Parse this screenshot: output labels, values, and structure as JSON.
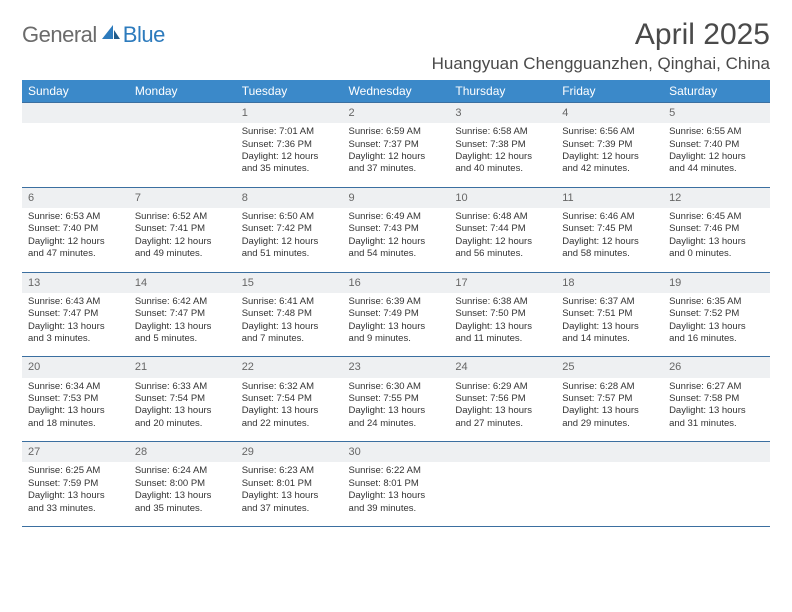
{
  "brand": {
    "general": "General",
    "blue": "Blue"
  },
  "title": "April 2025",
  "location": "Huangyuan Chengguanzhen, Qinghai, China",
  "colors": {
    "header_bg": "#3b89c9",
    "header_fg": "#ffffff",
    "daynum_bg": "#eef0f2",
    "rule": "#3b6fa0",
    "brand_gray": "#6b6b6b",
    "brand_blue": "#2d7bbd"
  },
  "weekdays": [
    "Sunday",
    "Monday",
    "Tuesday",
    "Wednesday",
    "Thursday",
    "Friday",
    "Saturday"
  ],
  "weeks": [
    [
      null,
      null,
      {
        "n": "1",
        "sr": "7:01 AM",
        "ss": "7:36 PM",
        "dl": "12 hours and 35 minutes."
      },
      {
        "n": "2",
        "sr": "6:59 AM",
        "ss": "7:37 PM",
        "dl": "12 hours and 37 minutes."
      },
      {
        "n": "3",
        "sr": "6:58 AM",
        "ss": "7:38 PM",
        "dl": "12 hours and 40 minutes."
      },
      {
        "n": "4",
        "sr": "6:56 AM",
        "ss": "7:39 PM",
        "dl": "12 hours and 42 minutes."
      },
      {
        "n": "5",
        "sr": "6:55 AM",
        "ss": "7:40 PM",
        "dl": "12 hours and 44 minutes."
      }
    ],
    [
      {
        "n": "6",
        "sr": "6:53 AM",
        "ss": "7:40 PM",
        "dl": "12 hours and 47 minutes."
      },
      {
        "n": "7",
        "sr": "6:52 AM",
        "ss": "7:41 PM",
        "dl": "12 hours and 49 minutes."
      },
      {
        "n": "8",
        "sr": "6:50 AM",
        "ss": "7:42 PM",
        "dl": "12 hours and 51 minutes."
      },
      {
        "n": "9",
        "sr": "6:49 AM",
        "ss": "7:43 PM",
        "dl": "12 hours and 54 minutes."
      },
      {
        "n": "10",
        "sr": "6:48 AM",
        "ss": "7:44 PM",
        "dl": "12 hours and 56 minutes."
      },
      {
        "n": "11",
        "sr": "6:46 AM",
        "ss": "7:45 PM",
        "dl": "12 hours and 58 minutes."
      },
      {
        "n": "12",
        "sr": "6:45 AM",
        "ss": "7:46 PM",
        "dl": "13 hours and 0 minutes."
      }
    ],
    [
      {
        "n": "13",
        "sr": "6:43 AM",
        "ss": "7:47 PM",
        "dl": "13 hours and 3 minutes."
      },
      {
        "n": "14",
        "sr": "6:42 AM",
        "ss": "7:47 PM",
        "dl": "13 hours and 5 minutes."
      },
      {
        "n": "15",
        "sr": "6:41 AM",
        "ss": "7:48 PM",
        "dl": "13 hours and 7 minutes."
      },
      {
        "n": "16",
        "sr": "6:39 AM",
        "ss": "7:49 PM",
        "dl": "13 hours and 9 minutes."
      },
      {
        "n": "17",
        "sr": "6:38 AM",
        "ss": "7:50 PM",
        "dl": "13 hours and 11 minutes."
      },
      {
        "n": "18",
        "sr": "6:37 AM",
        "ss": "7:51 PM",
        "dl": "13 hours and 14 minutes."
      },
      {
        "n": "19",
        "sr": "6:35 AM",
        "ss": "7:52 PM",
        "dl": "13 hours and 16 minutes."
      }
    ],
    [
      {
        "n": "20",
        "sr": "6:34 AM",
        "ss": "7:53 PM",
        "dl": "13 hours and 18 minutes."
      },
      {
        "n": "21",
        "sr": "6:33 AM",
        "ss": "7:54 PM",
        "dl": "13 hours and 20 minutes."
      },
      {
        "n": "22",
        "sr": "6:32 AM",
        "ss": "7:54 PM",
        "dl": "13 hours and 22 minutes."
      },
      {
        "n": "23",
        "sr": "6:30 AM",
        "ss": "7:55 PM",
        "dl": "13 hours and 24 minutes."
      },
      {
        "n": "24",
        "sr": "6:29 AM",
        "ss": "7:56 PM",
        "dl": "13 hours and 27 minutes."
      },
      {
        "n": "25",
        "sr": "6:28 AM",
        "ss": "7:57 PM",
        "dl": "13 hours and 29 minutes."
      },
      {
        "n": "26",
        "sr": "6:27 AM",
        "ss": "7:58 PM",
        "dl": "13 hours and 31 minutes."
      }
    ],
    [
      {
        "n": "27",
        "sr": "6:25 AM",
        "ss": "7:59 PM",
        "dl": "13 hours and 33 minutes."
      },
      {
        "n": "28",
        "sr": "6:24 AM",
        "ss": "8:00 PM",
        "dl": "13 hours and 35 minutes."
      },
      {
        "n": "29",
        "sr": "6:23 AM",
        "ss": "8:01 PM",
        "dl": "13 hours and 37 minutes."
      },
      {
        "n": "30",
        "sr": "6:22 AM",
        "ss": "8:01 PM",
        "dl": "13 hours and 39 minutes."
      },
      null,
      null,
      null
    ]
  ],
  "labels": {
    "sunrise": "Sunrise:",
    "sunset": "Sunset:",
    "daylight": "Daylight:"
  }
}
